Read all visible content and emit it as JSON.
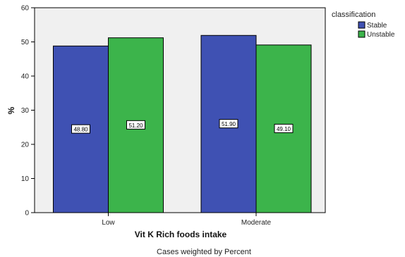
{
  "chart_data": {
    "type": "bar",
    "categories": [
      "Low",
      "Moderate"
    ],
    "series": [
      {
        "name": "Stable",
        "values": [
          48.8,
          51.9
        ],
        "labels": [
          "48.80",
          "51.90"
        ],
        "color": "#3f51b3"
      },
      {
        "name": "Unstable",
        "values": [
          51.2,
          49.1
        ],
        "labels": [
          "51.20",
          "49.10"
        ],
        "color": "#3cb44b"
      }
    ],
    "xlabel": "Vit K Rich foods intake",
    "ylabel": "%",
    "ylim": [
      0,
      60
    ],
    "yticks": [
      "0",
      "10",
      "20",
      "30",
      "40",
      "50",
      "60"
    ],
    "legend_title": "classification",
    "legend_position": "top-right",
    "footnote": "Cases weighted by Percent",
    "plot_background": "#f0f0f0",
    "grid": false
  }
}
